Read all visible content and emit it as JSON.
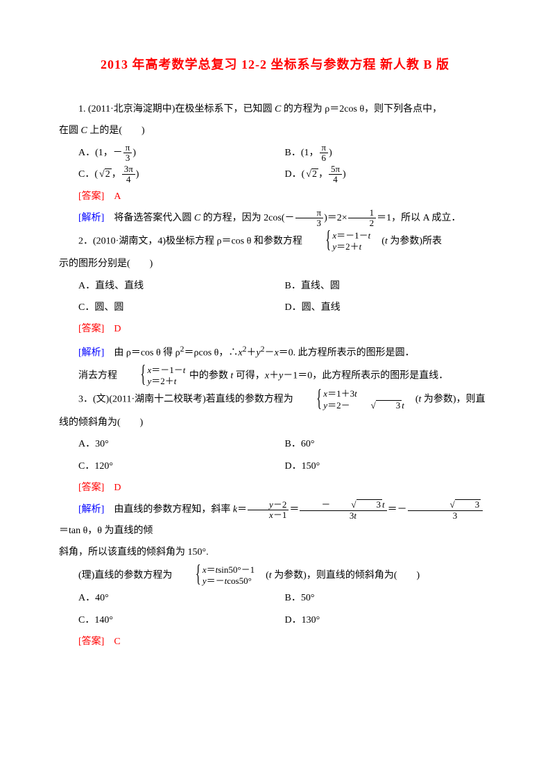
{
  "title_color": "#ff0000",
  "answer_color": "#ff0000",
  "analysis_color": "#0000ff",
  "title": "2013 年高考数学总复习 12-2 坐标系与参数方程 新人教 B 版",
  "q1": {
    "stem_a": "1. (2011·北京海淀期中)在极坐标系下，已知圆 ",
    "stem_b": " 的方程为 ρ＝2cos θ，则下列各点中，",
    "stem_c": "在圆 ",
    "stem_d": " 上的是(　　)",
    "italic_C": "C",
    "optA_pre": "A．(1，－",
    "optA_post": ")",
    "optB_pre": "B．(1，",
    "optB_post": ")",
    "optC_pre": "C．(",
    "optC_mid": "，",
    "optC_post": ")",
    "optD_pre": "D．(",
    "optD_mid": "，",
    "optD_post": ")",
    "frac_pi3_n": "π",
    "frac_pi3_d": "3",
    "frac_pi6_n": "π",
    "frac_pi6_d": "6",
    "sqrt2": "2",
    "frac_3pi4_n": "3π",
    "frac_3pi4_d": "4",
    "frac_5pi4_n": "5π",
    "frac_5pi4_d": "4",
    "ans_label": "[答案]　A",
    "ana_label": "[解析]",
    "ana_a": "　将备选答案代入圆 ",
    "ana_b": " 的方程，因为 2cos(－",
    "ana_c": ")＝2×",
    "ana_d": "＝1，所以 A 成立．",
    "frac_12_n": "1",
    "frac_12_d": "2"
  },
  "q2": {
    "stem_a": "2．(2010·湖南文，4)极坐标方程 ρ＝cos θ 和参数方程 ",
    "stem_b": "　(",
    "stem_c": " 为参数)所表",
    "stem2": "示的图形分别是(　　)",
    "italic_t": "t",
    "sys_r1_a": "＝－1－",
    "sys_r2_a": "＝2＋",
    "italic_x": "x",
    "italic_y": "y",
    "optA": "A．直线、直线",
    "optB": "B．直线、圆",
    "optC": "C．圆、圆",
    "optD": "D．圆、直线",
    "ans_label": "[答案]　D",
    "ana_label": "[解析]",
    "ana1_a": "　由 ρ＝cos θ 得 ρ",
    "ana1_sup": "2",
    "ana1_b": "＝ρcos θ，∴",
    "ana1_c": "＋",
    "ana1_d": "－",
    "ana1_e": "＝0. 此方程所表示的图形是圆．",
    "ana2_a": "消去方程 ",
    "ana2_b": " 中的参数 ",
    "ana2_c": " 可得，",
    "ana2_d": "＋",
    "ana2_e": "－1＝0，此方程所表示的图形是直线．"
  },
  "q3": {
    "stem_a": "3．(文)(2011·湖南十二校联考)若直线的参数方程为 ",
    "stem_b": "　(",
    "stem_c": " 为参数)，则直",
    "stem2": "线的倾斜角为(　　)",
    "italic_t": "t",
    "italic_x": "x",
    "italic_y": "y",
    "sys_r1_a": "＝1＋3",
    "sys_r2_a": "＝2－",
    "sqrt3": "3",
    "optA": "A．30°",
    "optB": "B．60°",
    "optC": "C．120°",
    "optD": "D．150°",
    "ans_label": "[答案]　D",
    "ana_label": "[解析]",
    "ana_a": "　由直线的参数方程知，斜率 ",
    "italic_k": "k",
    "ana_b": "＝",
    "ana_c": "＝",
    "ana_d": "＝－",
    "ana_e": "＝tan θ，θ 为直线的倾",
    "f1n_a": "－2",
    "f1d_a": "－1",
    "f2n_pre": "－",
    "f2d": "3",
    "f3d": "3",
    "ana2": "斜角，所以该直线的倾斜角为 150°."
  },
  "q3b": {
    "stem_a": "(理)直线的参数方程为 ",
    "stem_b": "　(",
    "stem_c": " 为参数)，则直线的倾斜角为(　　)",
    "italic_t": "t",
    "italic_x": "x",
    "italic_y": "y",
    "sys_r1_a": "＝",
    "sys_r1_b": "sin50°－1",
    "sys_r2_a": "＝－",
    "sys_r2_b": "cos50°",
    "optA": "A．40°",
    "optB": "B．50°",
    "optC": "C．140°",
    "optD": "D．130°",
    "ans_label": "[答案]　C"
  }
}
